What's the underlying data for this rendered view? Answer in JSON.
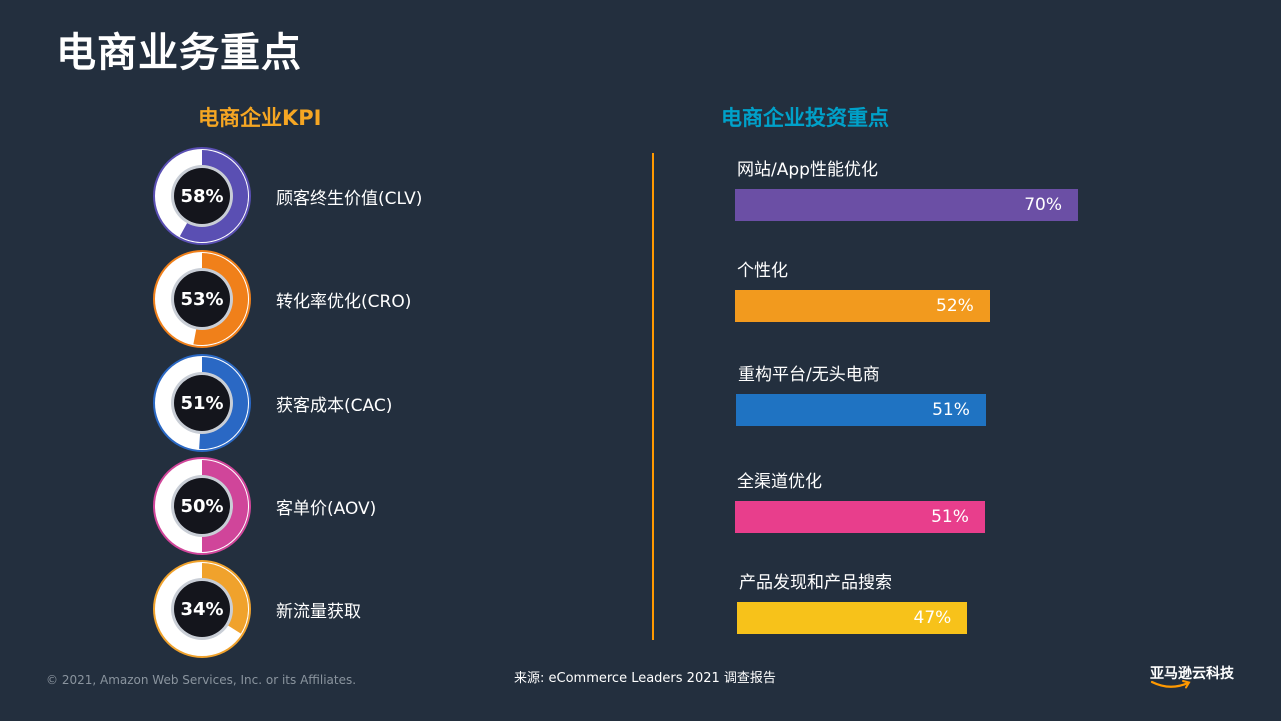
{
  "page": {
    "title": "电商业务重点",
    "copyright": "© 2021, Amazon Web Services, Inc. or its Affiliates.",
    "source": "来源: eCommerce Leaders 2021 调查报告",
    "logo_text": "亚马逊云科技"
  },
  "colors": {
    "background": "#232f3e",
    "kpi_title": "#f5a623",
    "invest_title": "#00a1c9",
    "divider": "#ff9900"
  },
  "chart_data": [
    {
      "type": "donut",
      "title": "电商企业KPI",
      "items": [
        {
          "label": "顾客终生价值(CLV)",
          "value": 58,
          "value_label": "58%",
          "color": "#5a4fb3"
        },
        {
          "label": "转化率优化(CRO)",
          "value": 53,
          "value_label": "53%",
          "color": "#f0801a"
        },
        {
          "label": "获客成本(CAC)",
          "value": 51,
          "value_label": "51%",
          "color": "#2a68c4"
        },
        {
          "label": "客单价(AOV)",
          "value": 50,
          "value_label": "50%",
          "color": "#d0459a"
        },
        {
          "label": "新流量获取",
          "value": 34,
          "value_label": "34%",
          "color": "#f0a22c"
        }
      ]
    },
    {
      "type": "bar",
      "title": "电商企业投资重点",
      "categories": [
        "网站/App性能优化",
        "个性化",
        "重构平台/无头电商",
        "全渠道优化",
        "产品发现和产品搜索"
      ],
      "values": [
        70,
        52,
        51,
        51,
        47
      ],
      "value_labels": [
        "70%",
        "52%",
        "51%",
        "51%",
        "47%"
      ],
      "colors": [
        "#6b4fa5",
        "#f29a1e",
        "#1f73c2",
        "#e83e8c",
        "#f7c21a"
      ],
      "xlim": [
        0,
        100
      ]
    }
  ]
}
